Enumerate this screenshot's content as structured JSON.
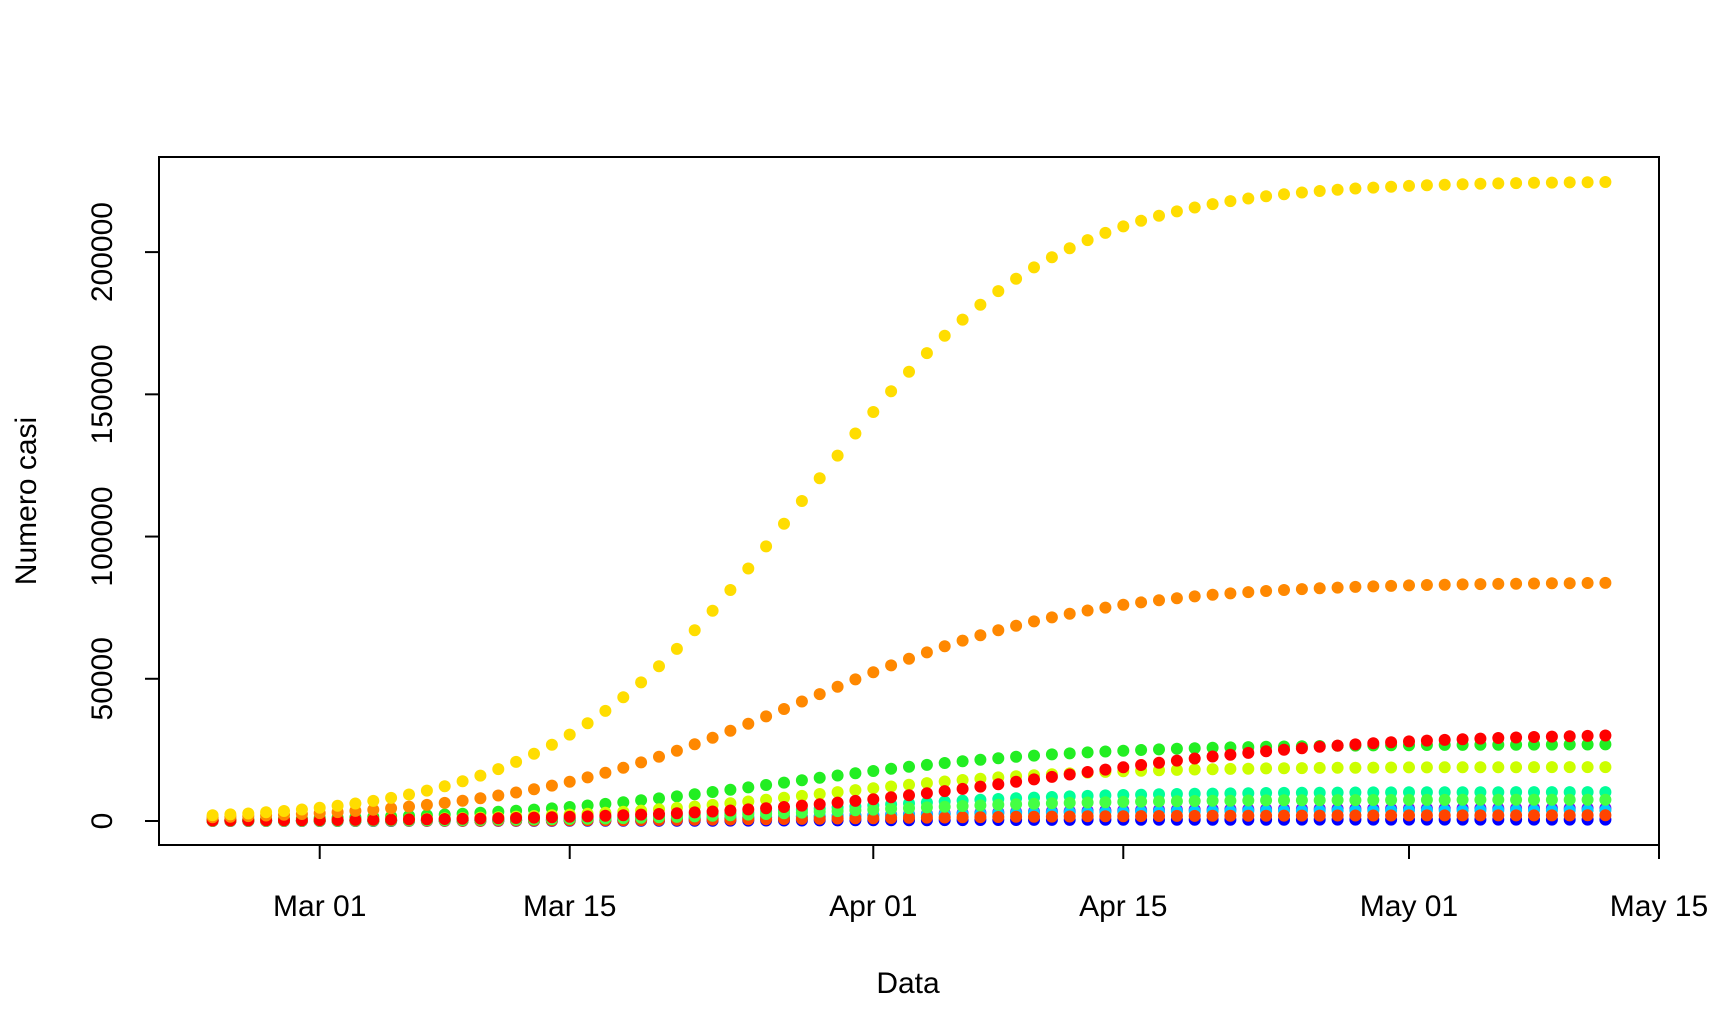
{
  "chart_data": {
    "type": "scatter",
    "title": "",
    "xlabel": "Data",
    "ylabel": "Numero casi",
    "x_start": "2020-02-24",
    "x_end": "2020-05-12",
    "xlim": [
      "2020-02-21",
      "2020-05-15"
    ],
    "ylim": [
      0,
      225000
    ],
    "x_ticks": [
      {
        "date": "2020-03-01",
        "label": "Mar 01"
      },
      {
        "date": "2020-03-15",
        "label": "Mar 15"
      },
      {
        "date": "2020-04-01",
        "label": "Apr 01"
      },
      {
        "date": "2020-04-15",
        "label": "Apr 15"
      },
      {
        "date": "2020-05-01",
        "label": "May 01"
      },
      {
        "date": "2020-05-15",
        "label": "May 15"
      }
    ],
    "y_ticks": [
      {
        "value": 0,
        "label": "0"
      },
      {
        "value": 50000,
        "label": "50000"
      },
      {
        "value": 100000,
        "label": "100000"
      },
      {
        "value": 150000,
        "label": "150000"
      },
      {
        "value": 200000,
        "label": "200000"
      }
    ],
    "grid": false,
    "legend": "none",
    "series": [
      {
        "color": "#0000ff",
        "final": 500,
        "mid": "2020-04-01",
        "scale": 8
      },
      {
        "color": "#7700ff",
        "final": 4500,
        "mid": "2020-04-02",
        "scale": 8
      },
      {
        "color": "#00ccff",
        "final": 3800,
        "mid": "2020-04-01",
        "scale": 8
      },
      {
        "color": "#ff4400",
        "final": 2000,
        "mid": "2020-04-01",
        "scale": 8
      },
      {
        "color": "#00ff99",
        "final": 10200,
        "mid": "2020-03-31",
        "scale": 7
      },
      {
        "color": "#44ff44",
        "final": 7500,
        "mid": "2020-03-31",
        "scale": 7
      },
      {
        "color": "#22ee22",
        "final": 27000,
        "mid": "2020-03-27",
        "scale": 8
      },
      {
        "color": "#ccff00",
        "final": 19000,
        "mid": "2020-03-29",
        "scale": 7
      },
      {
        "color": "#ff0000",
        "final": 31000,
        "mid": "2020-04-11",
        "scale": 9
      },
      {
        "color": "#ff8800",
        "final": 84000,
        "mid": "2020-03-28",
        "scale": 8
      },
      {
        "color": "#ffdd00",
        "final": 225000,
        "mid": "2020-03-28",
        "scale": 7
      }
    ]
  }
}
